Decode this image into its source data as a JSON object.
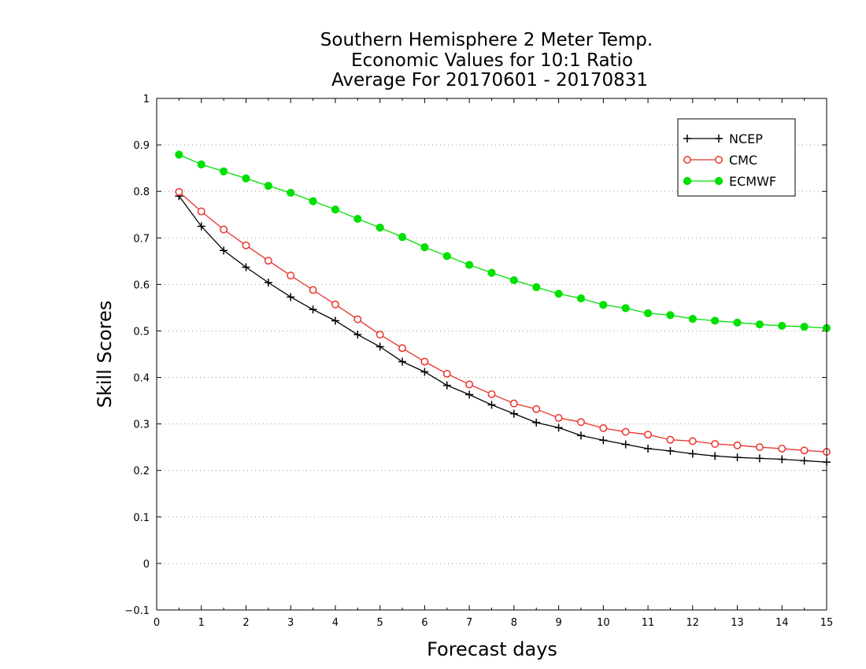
{
  "chart_data": {
    "type": "line",
    "title": [
      "Southern Hemisphere 2 Meter Temp.",
      "Economic Values for 10:1 Ratio",
      "Average For 20170601 - 20170831"
    ],
    "xlabel": "Forecast days",
    "ylabel": "Skill Scores",
    "xlim": [
      0,
      15
    ],
    "ylim": [
      -0.1,
      1
    ],
    "x_ticks": [
      0,
      1,
      2,
      3,
      4,
      5,
      6,
      7,
      8,
      9,
      10,
      11,
      12,
      13,
      14,
      15
    ],
    "x_tick_labels": [
      "0",
      "1",
      "2",
      "3",
      "4",
      "5",
      "6",
      "7",
      "8",
      "9",
      "10",
      "11",
      "12",
      "13",
      "14",
      "15"
    ],
    "y_ticks": [
      -0.1,
      0,
      0.1,
      0.2,
      0.3,
      0.4,
      0.5,
      0.6,
      0.7,
      0.8,
      0.9,
      1
    ],
    "y_tick_labels": [
      "−0.1",
      "0",
      "0.1",
      "0.2",
      "0.3",
      "0.4",
      "0.5",
      "0.6",
      "0.7",
      "0.8",
      "0.9",
      "1"
    ],
    "grid": "horizontal dotted",
    "legend_position": "top-right",
    "x": [
      0.5,
      1,
      1.5,
      2,
      2.5,
      3,
      3.5,
      4,
      4.5,
      5,
      5.5,
      6,
      6.5,
      7,
      7.5,
      8,
      8.5,
      9,
      9.5,
      10,
      10.5,
      11,
      11.5,
      12,
      12.5,
      13,
      13.5,
      14,
      14.5,
      15
    ],
    "series": [
      {
        "name": "NCEP",
        "color": "#000000",
        "marker": "plus",
        "values": [
          0.79,
          0.725,
          0.673,
          0.637,
          0.604,
          0.573,
          0.546,
          0.522,
          0.492,
          0.466,
          0.434,
          0.412,
          0.383,
          0.363,
          0.341,
          0.322,
          0.303,
          0.292,
          0.275,
          0.265,
          0.256,
          0.247,
          0.242,
          0.236,
          0.231,
          0.228,
          0.226,
          0.224,
          0.221,
          0.218
        ]
      },
      {
        "name": "CMC",
        "color": "#e8332a",
        "marker": "open-circle",
        "values": [
          0.799,
          0.757,
          0.718,
          0.684,
          0.651,
          0.619,
          0.588,
          0.557,
          0.525,
          0.492,
          0.463,
          0.434,
          0.408,
          0.385,
          0.364,
          0.344,
          0.332,
          0.313,
          0.304,
          0.291,
          0.283,
          0.277,
          0.266,
          0.263,
          0.257,
          0.254,
          0.25,
          0.247,
          0.243,
          0.24
        ]
      },
      {
        "name": "ECMWF",
        "color": "#00e000",
        "marker": "filled-circle",
        "values": [
          0.879,
          0.858,
          0.843,
          0.828,
          0.812,
          0.797,
          0.779,
          0.761,
          0.741,
          0.722,
          0.702,
          0.68,
          0.661,
          0.642,
          0.625,
          0.609,
          0.594,
          0.58,
          0.57,
          0.556,
          0.549,
          0.538,
          0.534,
          0.526,
          0.522,
          0.518,
          0.514,
          0.511,
          0.509,
          0.506
        ]
      }
    ]
  }
}
